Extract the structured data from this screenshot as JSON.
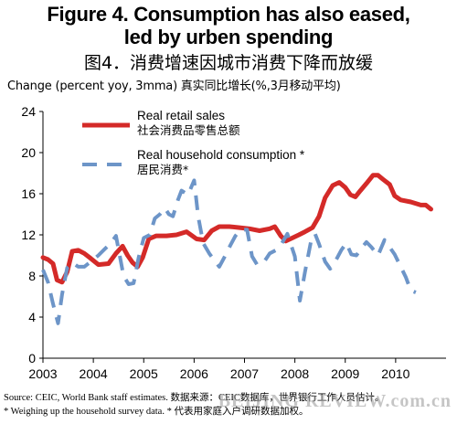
{
  "title_en_line1": "Figure 4. Consumption has also eased,",
  "title_en_line2": "led by urben spending",
  "title_cn": "图4．消费增速因城市消费下降而放缓",
  "ylabel": "Change (percent yoy, 3mma)  真实同比增长(%,3月移动平均)",
  "footnote1": "Source: CEIC, World Bank staff estimates.    数据来源：CEIC数据库，世界银行工作人员估计。",
  "footnote2": "* Weighing up the household survey data.  * 代表用家庭入户调研数据加权。",
  "watermark": "BEIJING REVIEW.com.cn",
  "chart_data": {
    "type": "line",
    "ylim": [
      0,
      24
    ],
    "yticks": [
      "0",
      "4",
      "8",
      "12",
      "16",
      "20",
      "24"
    ],
    "xlim": [
      2003.0,
      2011.0
    ],
    "xticks": [
      "2003",
      "2004",
      "2005",
      "2006",
      "2007",
      "2008",
      "2009",
      "2010"
    ],
    "legend_position": "top-center",
    "series": [
      {
        "name": "Real retail sales",
        "name_cn": "社会消费品零售总额",
        "color": "#d42a28",
        "style": "solid",
        "points": [
          [
            2003.0,
            9.8
          ],
          [
            2003.1,
            9.6
          ],
          [
            2003.2,
            9.2
          ],
          [
            2003.28,
            7.6
          ],
          [
            2003.38,
            7.4
          ],
          [
            2003.48,
            8.4
          ],
          [
            2003.58,
            10.4
          ],
          [
            2003.7,
            10.5
          ],
          [
            2003.82,
            10.2
          ],
          [
            2003.95,
            9.7
          ],
          [
            2004.1,
            9.1
          ],
          [
            2004.3,
            9.2
          ],
          [
            2004.45,
            10.2
          ],
          [
            2004.58,
            10.9
          ],
          [
            2004.68,
            10.0
          ],
          [
            2004.78,
            9.3
          ],
          [
            2004.88,
            8.9
          ],
          [
            2004.98,
            9.8
          ],
          [
            2005.1,
            11.6
          ],
          [
            2005.25,
            11.9
          ],
          [
            2005.45,
            11.9
          ],
          [
            2005.65,
            12.0
          ],
          [
            2005.85,
            12.3
          ],
          [
            2006.05,
            11.6
          ],
          [
            2006.2,
            11.5
          ],
          [
            2006.35,
            12.4
          ],
          [
            2006.5,
            12.8
          ],
          [
            2006.7,
            12.8
          ],
          [
            2006.9,
            12.7
          ],
          [
            2007.1,
            12.6
          ],
          [
            2007.3,
            12.4
          ],
          [
            2007.5,
            12.6
          ],
          [
            2007.6,
            12.8
          ],
          [
            2007.72,
            11.9
          ],
          [
            2007.82,
            11.4
          ],
          [
            2007.95,
            11.7
          ],
          [
            2008.08,
            12.0
          ],
          [
            2008.2,
            12.3
          ],
          [
            2008.35,
            12.7
          ],
          [
            2008.48,
            13.8
          ],
          [
            2008.6,
            15.6
          ],
          [
            2008.75,
            16.8
          ],
          [
            2008.88,
            17.1
          ],
          [
            2009.0,
            16.6
          ],
          [
            2009.1,
            15.9
          ],
          [
            2009.2,
            15.7
          ],
          [
            2009.3,
            16.3
          ],
          [
            2009.42,
            17.0
          ],
          [
            2009.55,
            17.8
          ],
          [
            2009.65,
            17.8
          ],
          [
            2009.75,
            17.4
          ],
          [
            2009.88,
            16.9
          ],
          [
            2009.98,
            15.8
          ],
          [
            2010.1,
            15.4
          ],
          [
            2010.3,
            15.2
          ],
          [
            2010.5,
            14.9
          ],
          [
            2010.6,
            14.9
          ],
          [
            2010.7,
            14.5
          ]
        ]
      },
      {
        "name": "Real household consumption *",
        "name_cn": "居民消费*",
        "color": "#6d95c8",
        "style": "dashed",
        "points": [
          [
            2003.0,
            8.6
          ],
          [
            2003.1,
            7.4
          ],
          [
            2003.2,
            5.3
          ],
          [
            2003.3,
            3.4
          ],
          [
            2003.38,
            6.2
          ],
          [
            2003.48,
            8.8
          ],
          [
            2003.58,
            9.3
          ],
          [
            2003.7,
            8.9
          ],
          [
            2003.82,
            8.9
          ],
          [
            2003.95,
            9.4
          ],
          [
            2004.1,
            10.0
          ],
          [
            2004.22,
            10.6
          ],
          [
            2004.35,
            11.2
          ],
          [
            2004.45,
            11.9
          ],
          [
            2004.6,
            8.0
          ],
          [
            2004.7,
            7.2
          ],
          [
            2004.8,
            7.3
          ],
          [
            2004.9,
            9.8
          ],
          [
            2005.0,
            11.7
          ],
          [
            2005.12,
            12.0
          ],
          [
            2005.22,
            13.6
          ],
          [
            2005.32,
            14.0
          ],
          [
            2005.42,
            14.6
          ],
          [
            2005.5,
            14.0
          ],
          [
            2005.58,
            13.8
          ],
          [
            2005.68,
            15.4
          ],
          [
            2005.75,
            16.3
          ],
          [
            2005.88,
            15.9
          ],
          [
            2006.0,
            17.3
          ],
          [
            2006.08,
            13.8
          ],
          [
            2006.18,
            11.2
          ],
          [
            2006.3,
            10.2
          ],
          [
            2006.42,
            9.4
          ],
          [
            2006.5,
            8.9
          ],
          [
            2006.62,
            10.0
          ],
          [
            2006.72,
            11.0
          ],
          [
            2006.82,
            11.9
          ],
          [
            2006.92,
            12.5
          ],
          [
            2007.05,
            12.5
          ],
          [
            2007.15,
            9.9
          ],
          [
            2007.25,
            9.1
          ],
          [
            2007.38,
            9.3
          ],
          [
            2007.5,
            10.2
          ],
          [
            2007.62,
            10.5
          ],
          [
            2007.72,
            11.0
          ],
          [
            2007.85,
            12.1
          ],
          [
            2008.0,
            9.9
          ],
          [
            2008.1,
            5.6
          ],
          [
            2008.2,
            8.4
          ],
          [
            2008.32,
            11.4
          ],
          [
            2008.4,
            12.1
          ],
          [
            2008.48,
            11.1
          ],
          [
            2008.6,
            9.4
          ],
          [
            2008.7,
            8.7
          ],
          [
            2008.8,
            9.4
          ],
          [
            2008.92,
            10.5
          ],
          [
            2009.02,
            11.2
          ],
          [
            2009.12,
            10.1
          ],
          [
            2009.22,
            10.0
          ],
          [
            2009.32,
            10.7
          ],
          [
            2009.42,
            11.3
          ],
          [
            2009.52,
            10.8
          ],
          [
            2009.65,
            10.0
          ],
          [
            2009.78,
            11.5
          ],
          [
            2009.88,
            10.8
          ],
          [
            2009.98,
            10.1
          ],
          [
            2010.08,
            9.1
          ],
          [
            2010.2,
            7.9
          ],
          [
            2010.3,
            6.6
          ],
          [
            2010.4,
            6.4
          ]
        ]
      }
    ]
  }
}
